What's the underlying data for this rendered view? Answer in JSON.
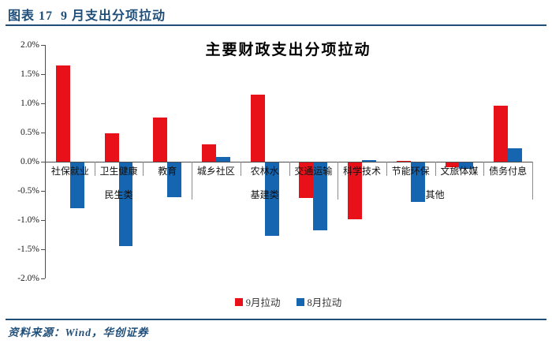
{
  "header": {
    "title": "图表 17  9 月支出分项拉动"
  },
  "source": {
    "text": "资料来源：Wind，华创证券"
  },
  "colors": {
    "accent": "#1f4e79",
    "axis": "#4d4d4d"
  },
  "chart_data": {
    "type": "bar",
    "title": "主要财政支出分项拉动",
    "categories": [
      "社保就业",
      "卫生健康",
      "教育",
      "城乡社区",
      "农林水",
      "交通运输",
      "科学技术",
      "节能环保",
      "文旅体媒",
      "债务付息"
    ],
    "series": [
      {
        "name": "9月拉动",
        "color": "#e8111a",
        "values": [
          1.65,
          0.48,
          0.76,
          0.3,
          1.15,
          -0.61,
          -0.97,
          0.02,
          -0.08,
          0.96
        ]
      },
      {
        "name": "8月拉动",
        "color": "#1565b0",
        "values": [
          -0.78,
          -1.43,
          -0.6,
          0.08,
          -1.25,
          -1.16,
          0.03,
          -0.68,
          -0.11,
          0.23
        ]
      }
    ],
    "groups": [
      {
        "label": "民生类",
        "from": 0,
        "to": 2
      },
      {
        "label": "基建类",
        "from": 3,
        "to": 5
      },
      {
        "label": "其他",
        "from": 6,
        "to": 9
      }
    ],
    "unit": "%",
    "ylim": [
      -2.0,
      2.0
    ],
    "ytick_step": 0.5,
    "ytick_labels": [
      "2.0%",
      "1.5%",
      "1.0%",
      "0.5%",
      "0.0%",
      "-0.5%",
      "-1.0%",
      "-1.5%",
      "-2.0%"
    ],
    "grid": false,
    "legend_position": "bottom"
  }
}
